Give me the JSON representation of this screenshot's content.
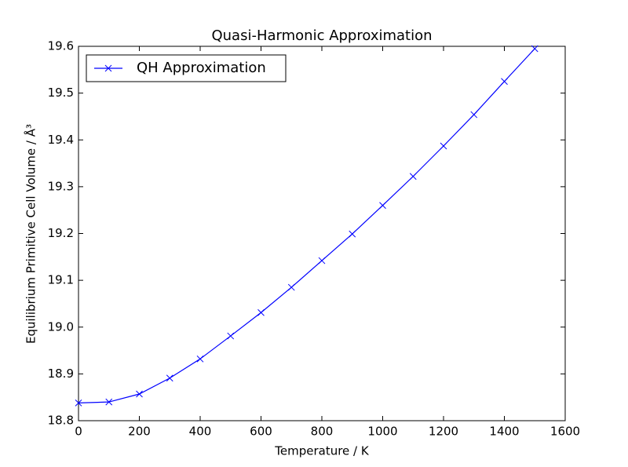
{
  "chart_data": {
    "type": "line",
    "title": "Quasi-Harmonic Approximation",
    "x_label": "Temperature / K",
    "y_label": "Equilibrium Primitive Cell Volume / Å³",
    "x": [
      0,
      100,
      200,
      300,
      400,
      500,
      600,
      700,
      800,
      900,
      1000,
      1100,
      1200,
      1300,
      1400,
      1500
    ],
    "series": [
      {
        "name": "QH Approximation",
        "color": "#0000ff",
        "marker": "x",
        "values": [
          18.838,
          18.84,
          18.857,
          18.891,
          18.932,
          18.981,
          19.031,
          19.085,
          19.142,
          19.199,
          19.26,
          19.322,
          19.387,
          19.454,
          19.525,
          19.595
        ]
      }
    ],
    "xlim": [
      0,
      1600
    ],
    "xticks": [
      0,
      200,
      400,
      600,
      800,
      1000,
      1200,
      1400,
      1600
    ],
    "ylim": [
      18.8,
      19.6
    ],
    "yticks": [
      18.8,
      18.9,
      {
        "value": 19,
        "label": "19.0"
      },
      19.1,
      19.2,
      19.3,
      19.4,
      19.5,
      19.6
    ],
    "grid": false,
    "legend": "upper left"
  }
}
